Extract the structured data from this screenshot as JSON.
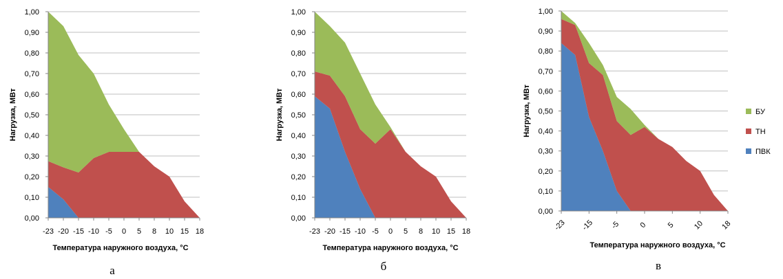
{
  "colors": {
    "pvk": "#4f81bd",
    "tn": "#c0504d",
    "bu": "#9bbb59",
    "grid": "#bfbfbf",
    "axis": "#868686"
  },
  "legend": [
    {
      "name": "БУ",
      "color": "#9bbb59"
    },
    {
      "name": "ТН",
      "color": "#c0504d"
    },
    {
      "name": "ПВК",
      "color": "#4f81bd"
    }
  ],
  "chart_data": [
    {
      "type": "area",
      "stacked": true,
      "caption": "а",
      "xlabel": "Температура  наружного воздуха, °С",
      "ylabel": "Нагрузка, МВт",
      "ylim": [
        0,
        1.0
      ],
      "yticks": [
        "0,00",
        "0,10",
        "0,20",
        "0,30",
        "0,40",
        "0,50",
        "0,60",
        "0,70",
        "0,80",
        "0,90",
        "1,00"
      ],
      "grid": true,
      "xticks": [
        "-23",
        "-20",
        "-15",
        "-10",
        "-5",
        "0",
        "5",
        "8",
        "10",
        "15",
        "18"
      ],
      "tick_rotation": 0,
      "x": [
        -23,
        -20,
        -15,
        -10,
        -5,
        0,
        5,
        8,
        10,
        15,
        18
      ],
      "series": [
        {
          "name": "ПВК",
          "values": [
            0.15,
            0.09,
            0,
            0,
            0,
            0,
            0,
            0,
            0,
            0,
            0
          ]
        },
        {
          "name": "ТН",
          "values": [
            0.125,
            0.155,
            0.22,
            0.29,
            0.32,
            0.32,
            0.32,
            0.25,
            0.2,
            0.08,
            0
          ]
        },
        {
          "name": "БУ",
          "values": [
            0.725,
            0.685,
            0.57,
            0.41,
            0.23,
            0.11,
            0,
            0,
            0,
            0,
            0
          ]
        }
      ]
    },
    {
      "type": "area",
      "stacked": true,
      "caption": "б",
      "xlabel": "Температура  наружного воздуха, °С",
      "ylabel": "Нагрузка, МВт",
      "ylim": [
        0,
        1.0
      ],
      "yticks": [
        "0,00",
        "0,10",
        "0,20",
        "0,30",
        "0,40",
        "0,50",
        "0,60",
        "0,70",
        "0,80",
        "0,90",
        "1,00"
      ],
      "grid": true,
      "xticks": [
        "-23",
        "-20",
        "-15",
        "-10",
        "-5",
        "0",
        "5",
        "8",
        "10",
        "15",
        "18"
      ],
      "tick_rotation": 0,
      "x": [
        -23,
        -20,
        -15,
        -10,
        -5,
        0,
        5,
        8,
        10,
        15,
        18
      ],
      "series": [
        {
          "name": "ПВК",
          "values": [
            0.59,
            0.53,
            0.32,
            0.14,
            0,
            0,
            0,
            0,
            0,
            0,
            0
          ]
        },
        {
          "name": "ТН",
          "values": [
            0.12,
            0.16,
            0.27,
            0.29,
            0.36,
            0.43,
            0.32,
            0.25,
            0.2,
            0.08,
            0
          ]
        },
        {
          "name": "БУ",
          "values": [
            0.29,
            0.24,
            0.26,
            0.27,
            0.19,
            0.01,
            0,
            0,
            0,
            0,
            0
          ]
        }
      ]
    },
    {
      "type": "area",
      "stacked": true,
      "caption": "в",
      "xlabel": "Температура  наружного воздуха, °С",
      "ylabel": "Нагрузка, МВт",
      "ylim": [
        0,
        1.0
      ],
      "yticks": [
        "0,00",
        "0,10",
        "0,20",
        "0,30",
        "0,40",
        "0,50",
        "0,60",
        "0,70",
        "0,80",
        "0,90",
        "1,00"
      ],
      "grid": true,
      "xticks": [
        "-23",
        "-15",
        "-5",
        "0",
        "5",
        "10",
        "18"
      ],
      "tick_rotation": -45,
      "legend_position": "right",
      "x": [
        -23,
        -20,
        -15,
        -10,
        -5,
        -2,
        0,
        2,
        5,
        8,
        10,
        15,
        18
      ],
      "series": [
        {
          "name": "ПВК",
          "values": [
            0.84,
            0.78,
            0.47,
            0.3,
            0.1,
            0,
            0,
            0,
            0,
            0,
            0,
            0,
            0
          ]
        },
        {
          "name": "ТН",
          "values": [
            0.12,
            0.15,
            0.27,
            0.38,
            0.35,
            0.38,
            0.42,
            0.36,
            0.32,
            0.25,
            0.2,
            0.08,
            0
          ]
        },
        {
          "name": "БУ",
          "values": [
            0.04,
            0.01,
            0.1,
            0.05,
            0.12,
            0.13,
            0.01,
            0,
            0,
            0,
            0,
            0,
            0
          ]
        }
      ]
    }
  ]
}
